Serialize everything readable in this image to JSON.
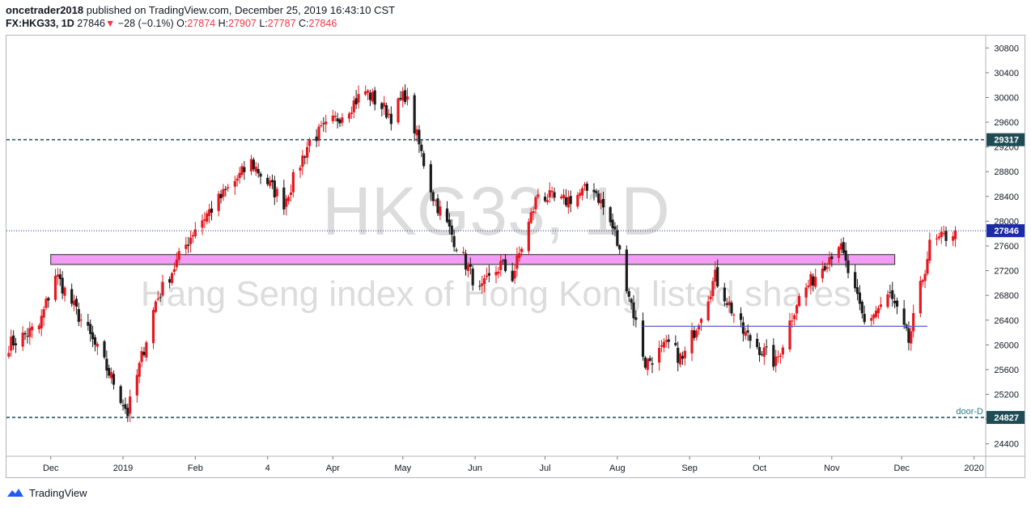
{
  "header": {
    "author": "oncetrader2018",
    "published_text": "published on TradingView.com, December 25, 2019 16:43:10 CST",
    "symbol": "FX:HKG33, 1D",
    "last": "27846",
    "change": "−28 (−0.1%)",
    "o_label": "O:",
    "o_value": "27874",
    "h_label": "H:",
    "h_value": "27907",
    "l_label": "L:",
    "l_value": "27787",
    "c_label": "C:",
    "c_value": "27846"
  },
  "footer": {
    "brand": "TradingView"
  },
  "colors": {
    "up": "#e5181f",
    "down": "#1c1c1c",
    "zone": "#f29cf5",
    "support": "#5b5bd6",
    "level_line": "#2b5461",
    "price_line": "#1e2ba8",
    "watermark": "#dcdcdc"
  },
  "chart_data": {
    "type": "candlestick",
    "timeframe": "1D",
    "watermark": {
      "symbol": "HKG33, 1D",
      "description": "Hang Seng index of Hong Kong listed shares"
    },
    "y_ticks": [
      24400,
      24800,
      25200,
      25600,
      26000,
      26400,
      26800,
      27200,
      27600,
      28000,
      28400,
      28800,
      29200,
      29600,
      30000,
      30400,
      30800
    ],
    "y_range": [
      24200,
      31000
    ],
    "x_labels": [
      "Dec",
      "2019",
      "Feb",
      "4",
      "Apr",
      "May",
      "Jun",
      "Jul",
      "Aug",
      "Sep",
      "Oct",
      "Nov",
      "Dec",
      "2020"
    ],
    "price_tags": [
      {
        "value": 29317,
        "label": "29317"
      },
      {
        "value": 27846,
        "label": "27846"
      },
      {
        "value": 24827,
        "label": "24827"
      }
    ],
    "horizontal_levels": [
      {
        "value": 29317,
        "style": "dashed"
      },
      {
        "value": 24827,
        "style": "dashed",
        "label": "door-D"
      }
    ],
    "last_price": 27846,
    "resistance_zone": {
      "from": 27300,
      "to": 27460,
      "start": "2018-12-01",
      "end": "2019-11-28"
    },
    "support_line": {
      "value": 26300,
      "start": "2019-08-12",
      "end": "2019-12-12"
    },
    "anchors": [
      [
        "2018-11-13",
        26000
      ],
      [
        "2018-11-26",
        26300
      ],
      [
        "2018-12-03",
        27150
      ],
      [
        "2018-12-17",
        26200
      ],
      [
        "2018-12-28",
        25400
      ],
      [
        "2019-01-03",
        24900
      ],
      [
        "2019-01-15",
        26700
      ],
      [
        "2019-02-01",
        27900
      ],
      [
        "2019-02-25",
        28950
      ],
      [
        "2019-03-11",
        28300
      ],
      [
        "2019-03-22",
        29300
      ],
      [
        "2019-04-01",
        29600
      ],
      [
        "2019-04-15",
        30100
      ],
      [
        "2019-04-26",
        29700
      ],
      [
        "2019-05-02",
        30050
      ],
      [
        "2019-05-14",
        28400
      ],
      [
        "2019-06-03",
        26850
      ],
      [
        "2019-06-12",
        27300
      ],
      [
        "2019-06-17",
        27100
      ],
      [
        "2019-06-28",
        28450
      ],
      [
        "2019-07-08",
        28300
      ],
      [
        "2019-07-22",
        28550
      ],
      [
        "2019-07-31",
        27800
      ],
      [
        "2019-08-13",
        25700
      ],
      [
        "2019-08-23",
        26000
      ],
      [
        "2019-08-29",
        25750
      ],
      [
        "2019-09-12",
        27100
      ],
      [
        "2019-09-24",
        26200
      ],
      [
        "2019-10-08",
        25700
      ],
      [
        "2019-10-17",
        26700
      ],
      [
        "2019-11-04",
        27650
      ],
      [
        "2019-11-15",
        26350
      ],
      [
        "2019-11-26",
        26800
      ],
      [
        "2019-12-04",
        26050
      ],
      [
        "2019-12-13",
        27600
      ],
      [
        "2019-12-24",
        27846
      ]
    ]
  }
}
